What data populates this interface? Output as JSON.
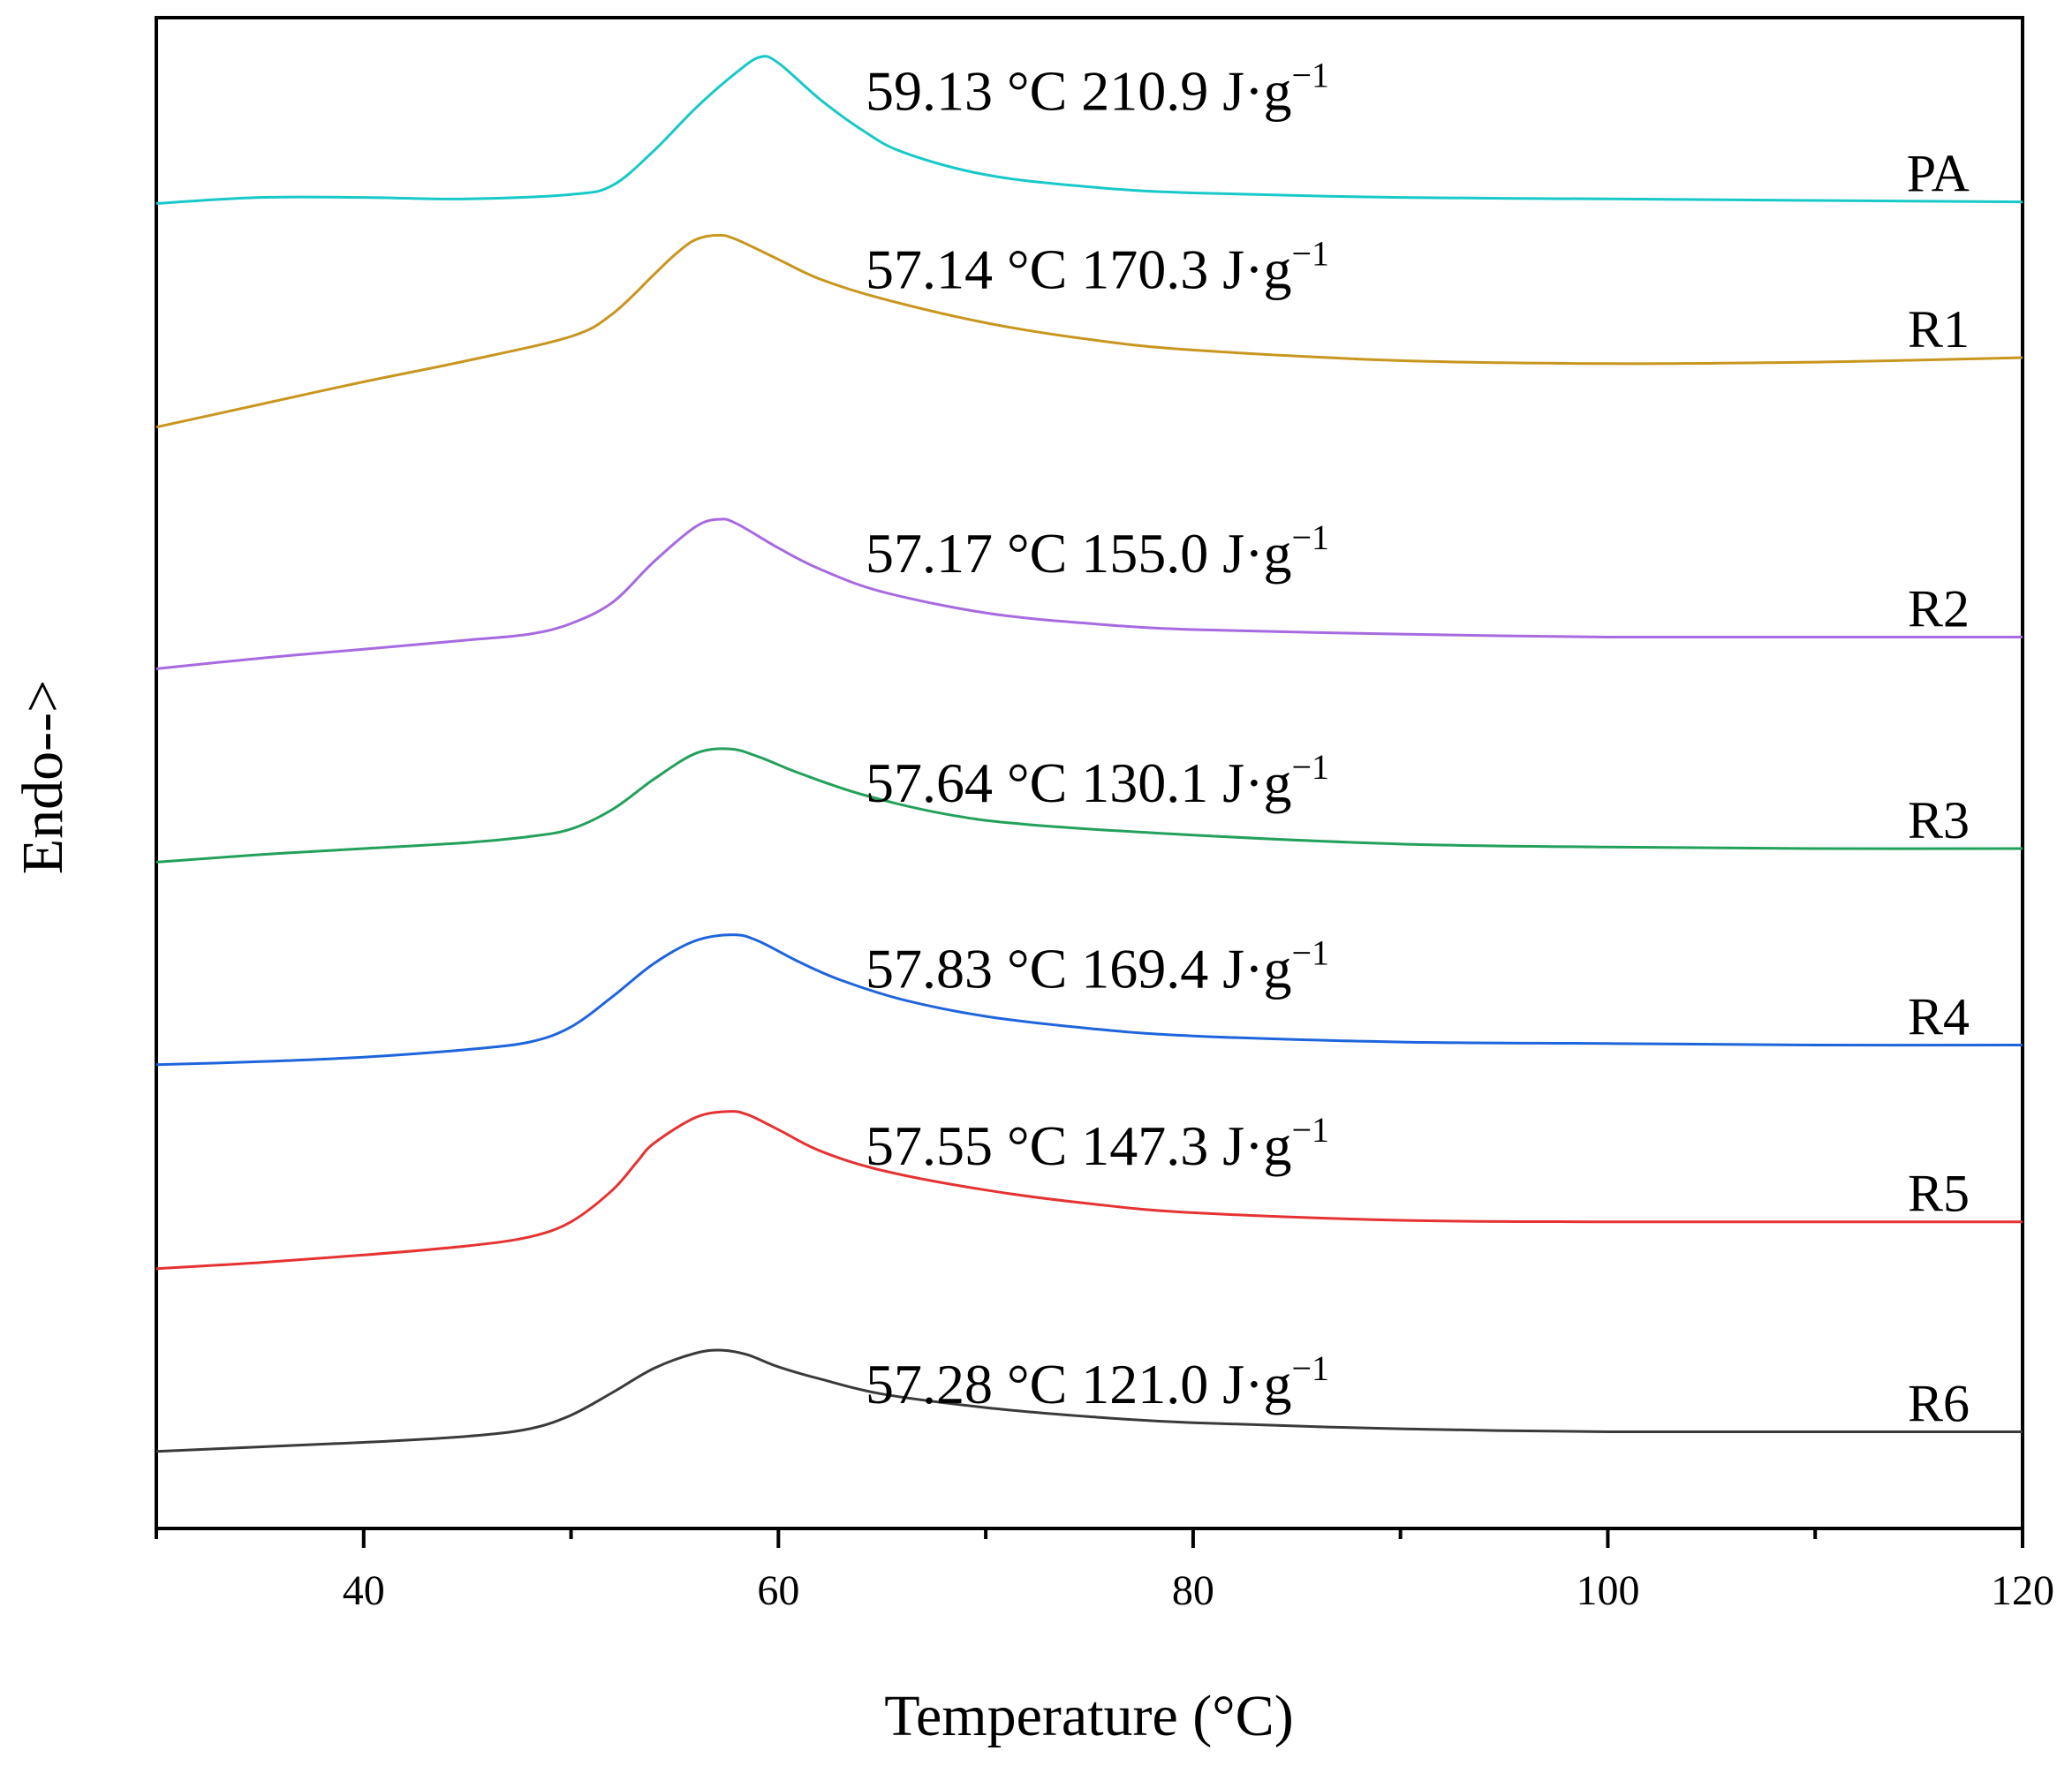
{
  "chart_data": {
    "type": "line",
    "title": "",
    "xlabel": "Temperature (°C)",
    "ylabel": "Endo-->",
    "xlim": [
      30,
      120
    ],
    "ylim": [
      0,
      100
    ],
    "xticks": [
      40,
      60,
      80,
      100,
      120
    ],
    "xtick_labels": [
      "40",
      "60",
      "80",
      "100",
      "120"
    ],
    "x_minor_ticks": [
      30,
      50,
      70,
      90,
      110
    ],
    "y_ticks_shown": false,
    "grid": false,
    "legend": "none (series labelled on right side above each curve)",
    "series": [
      {
        "name": "PA",
        "color": "#19c8c8",
        "annotation": "59.13 °C 210.9 J·g",
        "annotation_sup": "−1",
        "peak_temperature": 59.13,
        "enthalpy": 210.9,
        "points": [
          [
            30,
            87.7
          ],
          [
            35,
            88.1
          ],
          [
            40,
            88.1
          ],
          [
            45,
            88.0
          ],
          [
            50,
            88.3
          ],
          [
            52,
            88.9
          ],
          [
            54,
            91.2
          ],
          [
            56,
            94.0
          ],
          [
            58,
            96.4
          ],
          [
            59.13,
            97.4
          ],
          [
            60,
            97.0
          ],
          [
            62,
            94.6
          ],
          [
            64,
            92.6
          ],
          [
            66,
            91.1
          ],
          [
            70,
            89.6
          ],
          [
            75,
            88.8
          ],
          [
            80,
            88.4
          ],
          [
            90,
            88.1
          ],
          [
            100,
            88.0
          ],
          [
            110,
            87.9
          ],
          [
            120,
            87.8
          ]
        ]
      },
      {
        "name": "R1",
        "color": "#c8961e",
        "annotation": "57.14 °C 170.3 J·g",
        "annotation_sup": "−1",
        "peak_temperature": 57.14,
        "enthalpy": 170.3,
        "points": [
          [
            30,
            72.9
          ],
          [
            35,
            74.4
          ],
          [
            40,
            75.9
          ],
          [
            45,
            77.3
          ],
          [
            50,
            78.9
          ],
          [
            52,
            80.4
          ],
          [
            54,
            83.0
          ],
          [
            55,
            84.3
          ],
          [
            56,
            85.3
          ],
          [
            57.14,
            85.6
          ],
          [
            58,
            85.3
          ],
          [
            60,
            84.0
          ],
          [
            62,
            82.7
          ],
          [
            65,
            81.4
          ],
          [
            70,
            79.8
          ],
          [
            75,
            78.7
          ],
          [
            80,
            78.0
          ],
          [
            90,
            77.3
          ],
          [
            100,
            77.1
          ],
          [
            110,
            77.2
          ],
          [
            120,
            77.5
          ]
        ]
      },
      {
        "name": "R2",
        "color": "#a76ae0",
        "annotation": "57.17 °C 155.0 J·g",
        "annotation_sup": "−1",
        "peak_temperature": 57.17,
        "enthalpy": 155.0,
        "points": [
          [
            30,
            56.9
          ],
          [
            35,
            57.6
          ],
          [
            40,
            58.2
          ],
          [
            45,
            58.8
          ],
          [
            48,
            59.2
          ],
          [
            50,
            59.9
          ],
          [
            52,
            61.3
          ],
          [
            54,
            64.0
          ],
          [
            56,
            66.3
          ],
          [
            57.17,
            66.8
          ],
          [
            58,
            66.5
          ],
          [
            60,
            64.9
          ],
          [
            62,
            63.5
          ],
          [
            65,
            62.0
          ],
          [
            70,
            60.6
          ],
          [
            75,
            59.9
          ],
          [
            80,
            59.5
          ],
          [
            90,
            59.2
          ],
          [
            100,
            59.0
          ],
          [
            110,
            59.0
          ],
          [
            120,
            59.0
          ]
        ]
      },
      {
        "name": "R3",
        "color": "#23a05a",
        "annotation": "57.64 °C 130.1 J·g",
        "annotation_sup": "−1",
        "peak_temperature": 57.64,
        "enthalpy": 130.1,
        "points": [
          [
            30,
            44.1
          ],
          [
            35,
            44.6
          ],
          [
            40,
            45.0
          ],
          [
            45,
            45.4
          ],
          [
            48,
            45.8
          ],
          [
            50,
            46.3
          ],
          [
            52,
            47.6
          ],
          [
            54,
            49.6
          ],
          [
            56,
            51.3
          ],
          [
            57.64,
            51.6
          ],
          [
            59,
            51.1
          ],
          [
            61,
            50.0
          ],
          [
            64,
            48.6
          ],
          [
            68,
            47.3
          ],
          [
            72,
            46.6
          ],
          [
            80,
            45.9
          ],
          [
            90,
            45.3
          ],
          [
            100,
            45.1
          ],
          [
            110,
            45.0
          ],
          [
            120,
            45.0
          ]
        ]
      },
      {
        "name": "R4",
        "color": "#1e64dc",
        "annotation": "57.83 °C 169.4 J·g",
        "annotation_sup": "−1",
        "peak_temperature": 57.83,
        "enthalpy": 169.4,
        "points": [
          [
            30,
            30.7
          ],
          [
            35,
            30.9
          ],
          [
            40,
            31.2
          ],
          [
            45,
            31.7
          ],
          [
            48,
            32.2
          ],
          [
            50,
            33.2
          ],
          [
            52,
            35.2
          ],
          [
            54,
            37.4
          ],
          [
            56,
            38.9
          ],
          [
            57.83,
            39.3
          ],
          [
            59,
            38.9
          ],
          [
            61,
            37.5
          ],
          [
            63,
            36.3
          ],
          [
            66,
            35.0
          ],
          [
            70,
            33.9
          ],
          [
            75,
            33.1
          ],
          [
            80,
            32.6
          ],
          [
            90,
            32.2
          ],
          [
            100,
            32.1
          ],
          [
            110,
            32.0
          ],
          [
            120,
            32.0
          ]
        ]
      },
      {
        "name": "R5",
        "color": "#e63232",
        "annotation": "57.55 °C 147.3 J·g",
        "annotation_sup": "−1",
        "peak_temperature": 57.55,
        "enthalpy": 147.3,
        "points": [
          [
            30,
            17.2
          ],
          [
            35,
            17.6
          ],
          [
            40,
            18.1
          ],
          [
            45,
            18.7
          ],
          [
            48,
            19.3
          ],
          [
            50,
            20.3
          ],
          [
            52,
            22.4
          ],
          [
            53.2,
            24.3
          ],
          [
            54,
            25.5
          ],
          [
            56,
            27.2
          ],
          [
            57.55,
            27.6
          ],
          [
            58.5,
            27.4
          ],
          [
            60,
            26.4
          ],
          [
            62,
            25.0
          ],
          [
            65,
            23.7
          ],
          [
            70,
            22.4
          ],
          [
            75,
            21.5
          ],
          [
            80,
            20.9
          ],
          [
            90,
            20.4
          ],
          [
            100,
            20.3
          ],
          [
            110,
            20.3
          ],
          [
            120,
            20.3
          ]
        ]
      },
      {
        "name": "R6",
        "color": "#3a3a3a",
        "annotation": "57.28 °C 121.0 J·g",
        "annotation_sup": "−1",
        "peak_temperature": 57.28,
        "enthalpy": 121.0,
        "points": [
          [
            30,
            5.1
          ],
          [
            35,
            5.4
          ],
          [
            40,
            5.7
          ],
          [
            45,
            6.1
          ],
          [
            48,
            6.6
          ],
          [
            50,
            7.5
          ],
          [
            52,
            9.0
          ],
          [
            54,
            10.6
          ],
          [
            56,
            11.6
          ],
          [
            57.28,
            11.8
          ],
          [
            58.5,
            11.5
          ],
          [
            60,
            10.7
          ],
          [
            62,
            9.9
          ],
          [
            65,
            8.9
          ],
          [
            70,
            8.0
          ],
          [
            75,
            7.4
          ],
          [
            80,
            7.0
          ],
          [
            90,
            6.6
          ],
          [
            100,
            6.4
          ],
          [
            110,
            6.4
          ],
          [
            120,
            6.4
          ]
        ]
      }
    ]
  }
}
